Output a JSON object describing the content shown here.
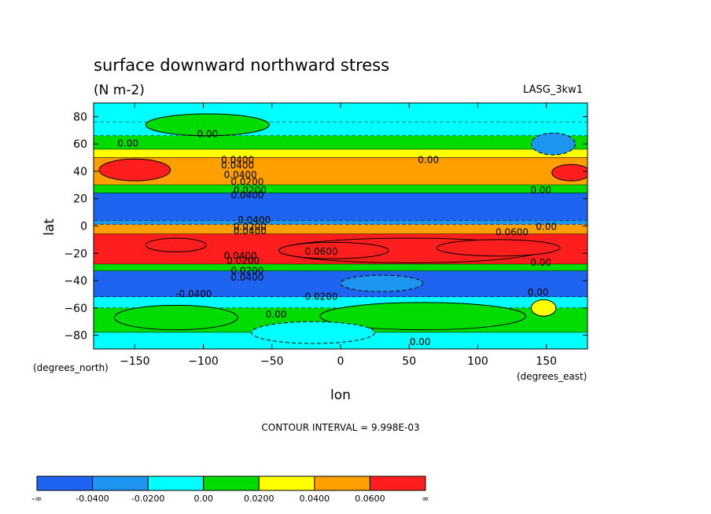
{
  "chart_data": {
    "type": "heatmap",
    "title": "surface downward northward stress",
    "units": "(N m-2)",
    "dataset_label": "LASG_3kw1",
    "xlabel": "lon",
    "ylabel": "lat",
    "x_units_label": "(degrees_east)",
    "y_units_label": "(degrees_north)",
    "xlim": [
      -180,
      180
    ],
    "ylim": [
      -90,
      90
    ],
    "x_ticks": [
      -150,
      -100,
      -50,
      0,
      50,
      100,
      150
    ],
    "y_ticks": [
      80,
      60,
      40,
      20,
      0,
      -20,
      -40,
      -60,
      -80
    ],
    "contour_interval_text": "CONTOUR INTERVAL = 9.998E-03",
    "colorbar": {
      "labels": [
        "-∞",
        "-0.0400",
        "-0.0200",
        "0.00",
        "0.0200",
        "0.0400",
        "0.0600",
        "∞"
      ],
      "colors": [
        "#1e64f0",
        "#1e96f0",
        "#00ffff",
        "#00dc00",
        "#ffff00",
        "#ffa000",
        "#ff1e1e"
      ]
    },
    "contour_labels": [
      {
        "text": "0.00",
        "lon": -155,
        "lat": 60
      },
      {
        "text": "0.00",
        "lon": -97,
        "lat": 67
      },
      {
        "text": "0.0400",
        "lon": -75,
        "lat": 48
      },
      {
        "text": "0.0400",
        "lon": -75,
        "lat": 44
      },
      {
        "text": "0.0400",
        "lon": -73,
        "lat": 37
      },
      {
        "text": "0.0200",
        "lon": -68,
        "lat": 32
      },
      {
        "text": "0.0200",
        "lon": -66,
        "lat": 26
      },
      {
        "text": "0.0400",
        "lon": -68,
        "lat": 22
      },
      {
        "text": "0.00",
        "lon": 64,
        "lat": 48
      },
      {
        "text": "0.00",
        "lon": 146,
        "lat": 26
      },
      {
        "text": "0.0400",
        "lon": -63,
        "lat": 4
      },
      {
        "text": "0.0200",
        "lon": -66,
        "lat": -1
      },
      {
        "text": "0.0400",
        "lon": -66,
        "lat": -4
      },
      {
        "text": "0.0600",
        "lon": 125,
        "lat": -5
      },
      {
        "text": "0.00",
        "lon": 150,
        "lat": -1
      },
      {
        "text": "0.0600",
        "lon": -14,
        "lat": -19
      },
      {
        "text": "0.0400",
        "lon": -73,
        "lat": -22
      },
      {
        "text": "0.0200",
        "lon": -71,
        "lat": -26
      },
      {
        "text": "0.0200",
        "lon": -68,
        "lat": -33
      },
      {
        "text": "0.0400",
        "lon": -68,
        "lat": -38
      },
      {
        "text": "0.00",
        "lon": 146,
        "lat": -27
      },
      {
        "text": "-0.0400",
        "lon": -107,
        "lat": -50
      },
      {
        "text": "0.0200",
        "lon": -14,
        "lat": -52
      },
      {
        "text": "0.00",
        "lon": 144,
        "lat": -49
      },
      {
        "text": "0.00",
        "lon": -47,
        "lat": -65
      },
      {
        "text": "0.00",
        "lon": 58,
        "lat": -85
      }
    ],
    "bands": [
      {
        "lat_top": 90,
        "lat_bottom": 76,
        "value": -0.01
      },
      {
        "lat_top": 76,
        "lat_bottom": 66,
        "value": -0.005
      },
      {
        "lat_top": 66,
        "lat_bottom": 56,
        "value": 0.01
      },
      {
        "lat_top": 56,
        "lat_bottom": 50,
        "value": 0.03
      },
      {
        "lat_top": 50,
        "lat_bottom": 30,
        "value": 0.05
      },
      {
        "lat_top": 30,
        "lat_bottom": 24,
        "value": 0.01
      },
      {
        "lat_top": 24,
        "lat_bottom": 4,
        "value": -0.05
      },
      {
        "lat_top": 4,
        "lat_bottom": 1,
        "value": -0.03
      },
      {
        "lat_top": 1,
        "lat_bottom": -6,
        "value": 0.05
      },
      {
        "lat_top": -6,
        "lat_bottom": -28,
        "value": 0.065
      },
      {
        "lat_top": -28,
        "lat_bottom": -33,
        "value": 0.01
      },
      {
        "lat_top": -33,
        "lat_bottom": -52,
        "value": -0.05
      },
      {
        "lat_top": -52,
        "lat_bottom": -60,
        "value": -0.01
      },
      {
        "lat_top": -60,
        "lat_bottom": -78,
        "value": 0.01
      },
      {
        "lat_top": -78,
        "lat_bottom": -90,
        "value": -0.01
      }
    ],
    "blobs": [
      {
        "lon": -150,
        "lat": 41,
        "rlon": 26,
        "rlat": 8,
        "value": 0.065
      },
      {
        "lon": 168,
        "lat": 39,
        "rlon": 14,
        "rlat": 6,
        "value": 0.065
      },
      {
        "lon": -97,
        "lat": 74,
        "rlon": 45,
        "rlat": 8,
        "value": 0.01
      },
      {
        "lon": 155,
        "lat": 60,
        "rlon": 16,
        "rlat": 8,
        "value": -0.03
      },
      {
        "lon": -120,
        "lat": -14,
        "rlon": 22,
        "rlat": 5,
        "value": 0.065
      },
      {
        "lon": 50,
        "lat": -18,
        "rlon": 95,
        "rlat": 9,
        "value": 0.065
      },
      {
        "lon": -5,
        "lat": -18,
        "rlon": 40,
        "rlat": 6,
        "value": 0.065
      },
      {
        "lon": 115,
        "lat": -16,
        "rlon": 45,
        "rlat": 6,
        "value": 0.065
      },
      {
        "lon": 30,
        "lat": -42,
        "rlon": 30,
        "rlat": 6,
        "value": -0.03
      },
      {
        "lon": -120,
        "lat": -67,
        "rlon": 45,
        "rlat": 9,
        "value": 0.01
      },
      {
        "lon": 60,
        "lat": -66,
        "rlon": 75,
        "rlat": 10,
        "value": 0.01
      },
      {
        "lon": 148,
        "lat": -60,
        "rlon": 9,
        "rlat": 6,
        "value": 0.03
      },
      {
        "lon": -20,
        "lat": -78,
        "rlon": 45,
        "rlat": 8,
        "value": -0.01
      }
    ]
  }
}
